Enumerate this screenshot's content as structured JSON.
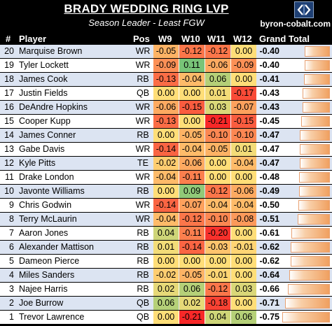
{
  "title": "BRADY WEDDING RING LVP",
  "subtitle": "Season Leader - Least FGW",
  "site": "byron-cobalt.com",
  "logo_icon": "bc-logo-icon",
  "headers": {
    "num": "#",
    "player": "Player",
    "pos": "Pos",
    "w9": "W9",
    "w10": "W10",
    "w11": "W11",
    "w12": "W12",
    "total": "Grand Total"
  },
  "bar_max_abs": 0.75,
  "rows": [
    {
      "num": "20",
      "player": "Marquise Brown",
      "pos": "WR",
      "w9": "-0.05",
      "w10": "-0.12",
      "w11": "-0.12",
      "w12": "0.00",
      "total": "-0.40"
    },
    {
      "num": "19",
      "player": "Tyler Lockett",
      "pos": "WR",
      "w9": "-0.09",
      "w10": "0.11",
      "w11": "-0.06",
      "w12": "-0.09",
      "total": "-0.40"
    },
    {
      "num": "18",
      "player": "James Cook",
      "pos": "RB",
      "w9": "-0.13",
      "w10": "-0.04",
      "w11": "0.06",
      "w12": "0.00",
      "total": "-0.41"
    },
    {
      "num": "17",
      "player": "Justin Fields",
      "pos": "QB",
      "w9": "0.00",
      "w10": "0.00",
      "w11": "0.01",
      "w12": "-0.17",
      "total": "-0.43"
    },
    {
      "num": "16",
      "player": "DeAndre Hopkins",
      "pos": "WR",
      "w9": "-0.06",
      "w10": "-0.15",
      "w11": "0.03",
      "w12": "-0.07",
      "total": "-0.43"
    },
    {
      "num": "15",
      "player": "Cooper Kupp",
      "pos": "WR",
      "w9": "-0.13",
      "w10": "0.00",
      "w11": "-0.21",
      "w12": "-0.15",
      "total": "-0.45"
    },
    {
      "num": "14",
      "player": "James Conner",
      "pos": "RB",
      "w9": "0.00",
      "w10": "-0.05",
      "w11": "-0.10",
      "w12": "-0.10",
      "total": "-0.47"
    },
    {
      "num": "13",
      "player": "Gabe Davis",
      "pos": "WR",
      "w9": "-0.14",
      "w10": "-0.04",
      "w11": "-0.05",
      "w12": "0.01",
      "total": "-0.47"
    },
    {
      "num": "12",
      "player": "Kyle Pitts",
      "pos": "TE",
      "w9": "-0.02",
      "w10": "-0.06",
      "w11": "0.00",
      "w12": "-0.04",
      "total": "-0.47"
    },
    {
      "num": "11",
      "player": "Drake London",
      "pos": "WR",
      "w9": "-0.04",
      "w10": "-0.11",
      "w11": "0.00",
      "w12": "0.00",
      "total": "-0.48"
    },
    {
      "num": "10",
      "player": "Javonte Williams",
      "pos": "RB",
      "w9": "0.00",
      "w10": "0.09",
      "w11": "-0.12",
      "w12": "-0.06",
      "total": "-0.49"
    },
    {
      "num": "9",
      "player": "Chris Godwin",
      "pos": "WR",
      "w9": "-0.14",
      "w10": "-0.07",
      "w11": "-0.04",
      "w12": "-0.04",
      "total": "-0.50"
    },
    {
      "num": "8",
      "player": "Terry McLaurin",
      "pos": "WR",
      "w9": "-0.04",
      "w10": "-0.12",
      "w11": "-0.10",
      "w12": "-0.08",
      "total": "-0.51"
    },
    {
      "num": "7",
      "player": "Aaron Jones",
      "pos": "RB",
      "w9": "0.04",
      "w10": "-0.11",
      "w11": "-0.20",
      "w12": "0.00",
      "total": "-0.61"
    },
    {
      "num": "6",
      "player": "Alexander Mattison",
      "pos": "RB",
      "w9": "0.01",
      "w10": "-0.14",
      "w11": "-0.03",
      "w12": "-0.01",
      "total": "-0.62"
    },
    {
      "num": "5",
      "player": "Dameon Pierce",
      "pos": "RB",
      "w9": "0.00",
      "w10": "0.00",
      "w11": "0.00",
      "w12": "0.00",
      "total": "-0.62"
    },
    {
      "num": "4",
      "player": "Miles Sanders",
      "pos": "RB",
      "w9": "-0.02",
      "w10": "-0.05",
      "w11": "-0.01",
      "w12": "0.00",
      "total": "-0.64"
    },
    {
      "num": "3",
      "player": "Najee Harris",
      "pos": "RB",
      "w9": "0.02",
      "w10": "0.06",
      "w11": "-0.12",
      "w12": "0.03",
      "total": "-0.66"
    },
    {
      "num": "2",
      "player": "Joe Burrow",
      "pos": "QB",
      "w9": "0.06",
      "w10": "0.02",
      "w11": "-0.18",
      "w12": "0.00",
      "total": "-0.71"
    },
    {
      "num": "1",
      "player": "Trevor Lawrence",
      "pos": "QB",
      "w9": "0.00",
      "w10": "-0.21",
      "w11": "0.04",
      "w12": "0.06",
      "total": "-0.75"
    }
  ]
}
